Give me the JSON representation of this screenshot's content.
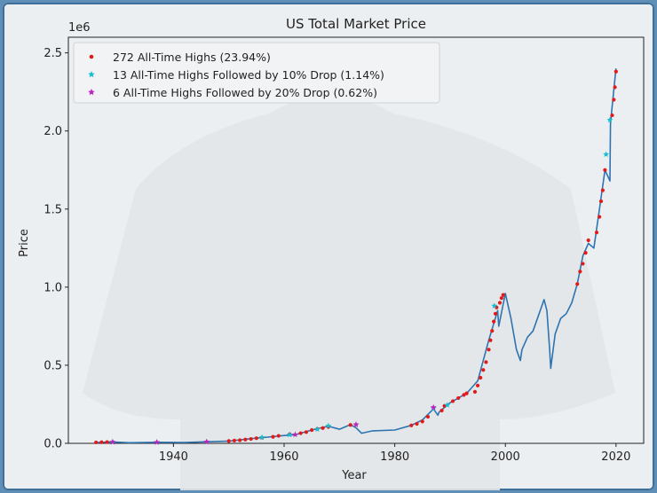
{
  "chart_data": {
    "type": "line",
    "title": "US Total Market Price",
    "xlabel": "Year",
    "ylabel": "Price",
    "y_scale_label": "1e6",
    "xlim": [
      1921,
      2025
    ],
    "ylim": [
      0,
      2.6
    ],
    "x_ticks": [
      1940,
      1960,
      1980,
      2000,
      2020
    ],
    "x_tick_labels": [
      "1940",
      "1960",
      "1980",
      "2000",
      "2020"
    ],
    "y_ticks": [
      0,
      0.5,
      1.0,
      1.5,
      2.0,
      2.5
    ],
    "y_tick_labels": [
      "0.0",
      "0.5",
      "1.0",
      "1.5",
      "2.0",
      "2.5"
    ],
    "grid": false,
    "legend_position": "top-left",
    "series": [
      {
        "name": "Price",
        "color": "#2e74b0",
        "x": [
          1926,
          1929,
          1932,
          1937,
          1942,
          1945,
          1950,
          1954,
          1957,
          1960,
          1962,
          1965,
          1968,
          1970,
          1972,
          1973,
          1974,
          1976,
          1980,
          1983,
          1985,
          1987,
          1987.8,
          1988,
          1990,
          1991,
          1993,
          1995,
          1997,
          1998.6,
          1998.8,
          2000,
          2001,
          2002,
          2002.7,
          2003,
          2004,
          2005,
          2007,
          2007.5,
          2008,
          2008.2,
          2009,
          2010,
          2011,
          2012,
          2013,
          2014,
          2015,
          2016,
          2017,
          2018,
          2018.9,
          2019,
          2020
        ],
        "values": [
          0.005,
          0.009,
          0.004,
          0.007,
          0.005,
          0.009,
          0.014,
          0.03,
          0.04,
          0.05,
          0.055,
          0.085,
          0.11,
          0.09,
          0.12,
          0.1,
          0.065,
          0.08,
          0.085,
          0.115,
          0.15,
          0.22,
          0.18,
          0.2,
          0.26,
          0.28,
          0.32,
          0.4,
          0.66,
          0.85,
          0.75,
          0.96,
          0.8,
          0.6,
          0.53,
          0.6,
          0.68,
          0.72,
          0.92,
          0.85,
          0.6,
          0.48,
          0.7,
          0.8,
          0.83,
          0.9,
          1.02,
          1.2,
          1.28,
          1.25,
          1.5,
          1.75,
          1.68,
          2.05,
          2.4
        ]
      }
    ],
    "markers": [
      {
        "name": "272 All-Time Highs (23.94%)",
        "color": "#e31a1a",
        "shape": "dot",
        "x": [
          1926,
          1927,
          1928,
          1950,
          1951,
          1952,
          1953,
          1954,
          1955,
          1956,
          1958,
          1959,
          1961,
          1963,
          1964,
          1965,
          1966,
          1967,
          1968,
          1972,
          1983,
          1984,
          1985,
          1986,
          1988.5,
          1989,
          1990.5,
          1991.5,
          1992.5,
          1993,
          1994.5,
          1995,
          1995.5,
          1996,
          1996.5,
          1997,
          1997.3,
          1997.6,
          1997.9,
          1998.2,
          1998.4,
          1999,
          1999.3,
          1999.6,
          2013,
          2013.5,
          2014,
          2014.5,
          2015,
          2016.5,
          2017,
          2017.3,
          2017.6,
          2018,
          2019.3,
          2019.6,
          2019.8,
          2020
        ],
        "values": [
          0.006,
          0.007,
          0.008,
          0.015,
          0.018,
          0.02,
          0.024,
          0.028,
          0.033,
          0.037,
          0.042,
          0.048,
          0.058,
          0.065,
          0.072,
          0.085,
          0.092,
          0.098,
          0.105,
          0.118,
          0.115,
          0.125,
          0.14,
          0.17,
          0.21,
          0.24,
          0.27,
          0.29,
          0.31,
          0.32,
          0.33,
          0.37,
          0.42,
          0.47,
          0.52,
          0.6,
          0.66,
          0.72,
          0.78,
          0.83,
          0.87,
          0.9,
          0.93,
          0.95,
          1.02,
          1.1,
          1.15,
          1.22,
          1.3,
          1.35,
          1.45,
          1.55,
          1.62,
          1.75,
          2.1,
          2.2,
          2.28,
          2.38
        ]
      },
      {
        "name": "13 All-Time Highs Followed by 10% Drop (1.14%)",
        "color": "#17becf",
        "shape": "star",
        "x": [
          1929,
          1937,
          1946,
          1956,
          1961,
          1966,
          1968,
          1973,
          1987,
          1989.5,
          1998,
          2018.2,
          2018.9
        ],
        "values": [
          0.008,
          0.007,
          0.009,
          0.038,
          0.055,
          0.09,
          0.112,
          0.12,
          0.225,
          0.245,
          0.88,
          1.85,
          2.07
        ]
      },
      {
        "name": "6 All-Time Highs Followed by 20% Drop (0.62%)",
        "color": "#c021c0",
        "shape": "star",
        "x": [
          1929,
          1937,
          1946,
          1962,
          1973,
          1987
        ],
        "values": [
          0.009,
          0.007,
          0.01,
          0.056,
          0.12,
          0.23
        ]
      }
    ]
  }
}
